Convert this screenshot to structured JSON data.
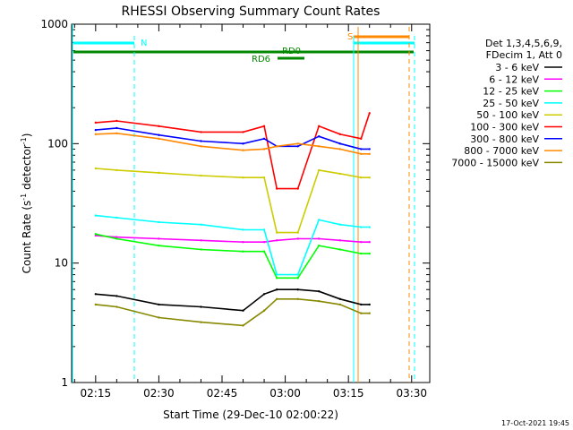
{
  "chart_data": {
    "type": "line",
    "title": "RHESSI Observing Summary Count Rates",
    "xlabel": "Start Time (29-Dec-10 02:00:22)",
    "ylabel_main": "Count Rate (s",
    "ylabel_sup1": "-1",
    "ylabel_mid": " detector",
    "ylabel_sup2": "-1",
    "ylabel_end": ")",
    "y_scale": "log",
    "xlim_minutes_after_0200": [
      -3.5,
      60.5
    ],
    "ylim": [
      1,
      1000
    ],
    "x_ticks": [
      {
        "label": "02:15",
        "minutes": 15
      },
      {
        "label": "02:30",
        "minutes": 30
      },
      {
        "label": "02:45",
        "minutes": 45
      },
      {
        "label": "03:00",
        "minutes": 60
      },
      {
        "label": "03:15",
        "minutes": 75
      },
      {
        "label": "03:30",
        "minutes": 90
      }
    ],
    "y_ticks": [
      {
        "label": "1",
        "value": 1
      },
      {
        "label": "10",
        "value": 10
      },
      {
        "label": "100",
        "value": 100
      },
      {
        "label": "1000",
        "value": 1000
      }
    ],
    "legend_header": [
      "Det 1,3,4,5,6,9,",
      "FDecim 1, Att 0"
    ],
    "legend_placement": "right",
    "series": [
      {
        "name": "3 - 6 keV",
        "color": "#000000",
        "x": [
          15,
          20,
          30,
          40,
          50,
          55,
          58,
          63,
          68,
          73,
          78,
          80
        ],
        "y": [
          5.5,
          5.3,
          4.5,
          4.3,
          4.0,
          5.5,
          6.0,
          6.0,
          5.8,
          5.0,
          4.5,
          4.5
        ]
      },
      {
        "name": "6 - 12 keV",
        "color": "#ff00ff",
        "x": [
          15,
          20,
          30,
          40,
          50,
          55,
          58,
          63,
          68,
          73,
          78,
          80
        ],
        "y": [
          17,
          16.5,
          16,
          15.5,
          15,
          15,
          15.5,
          16,
          16,
          15.5,
          15,
          15
        ]
      },
      {
        "name": "12 - 25 keV",
        "color": "#00ff00",
        "x": [
          15,
          20,
          30,
          40,
          50,
          55,
          58,
          63,
          68,
          73,
          78,
          80
        ],
        "y": [
          17.5,
          16,
          14,
          13,
          12.5,
          12.5,
          7.5,
          7.5,
          14,
          13,
          12,
          12
        ]
      },
      {
        "name": "25 - 50 keV",
        "color": "#00ffff",
        "x": [
          15,
          20,
          30,
          40,
          50,
          55,
          58,
          63,
          68,
          73,
          78,
          80
        ],
        "y": [
          25,
          24,
          22,
          21,
          19,
          19,
          8.0,
          8.0,
          23,
          21,
          20,
          20
        ]
      },
      {
        "name": "50 - 100 keV",
        "color": "#cccc00",
        "x": [
          15,
          20,
          30,
          40,
          50,
          55,
          58,
          63,
          68,
          73,
          78,
          80
        ],
        "y": [
          62,
          60,
          57,
          54,
          52,
          52,
          18,
          18,
          60,
          56,
          52,
          52
        ]
      },
      {
        "name": "100 - 300 keV",
        "color": "#ff0000",
        "x": [
          15,
          20,
          30,
          40,
          50,
          55,
          58,
          63,
          68,
          73,
          78,
          80
        ],
        "y": [
          150,
          155,
          140,
          125,
          125,
          140,
          42,
          42,
          140,
          120,
          110,
          180
        ]
      },
      {
        "name": "300 - 800 keV",
        "color": "#0000ff",
        "x": [
          15,
          20,
          30,
          40,
          50,
          55,
          58,
          63,
          68,
          73,
          78,
          80
        ],
        "y": [
          130,
          135,
          118,
          105,
          100,
          110,
          95,
          95,
          115,
          100,
          90,
          90
        ]
      },
      {
        "name": "800 - 7000 keV",
        "color": "#ff8800",
        "x": [
          15,
          20,
          30,
          40,
          50,
          55,
          58,
          63,
          68,
          73,
          78,
          80
        ],
        "y": [
          120,
          122,
          110,
          95,
          88,
          90,
          95,
          100,
          95,
          90,
          82,
          82
        ]
      },
      {
        "name": "7000 - 15000 keV",
        "color": "#888800",
        "x": [
          15,
          20,
          30,
          40,
          50,
          55,
          58,
          63,
          68,
          73,
          78,
          80
        ],
        "y": [
          4.5,
          4.3,
          3.5,
          3.2,
          3.0,
          4.0,
          5.0,
          5.0,
          4.8,
          4.5,
          3.8,
          3.8
        ]
      }
    ],
    "night_marker_label": "N",
    "saa_marker_label": "S",
    "rd_labels": [
      "RD0",
      "RD6"
    ],
    "footer_timestamp": "17-Oct-2021 19:45"
  }
}
